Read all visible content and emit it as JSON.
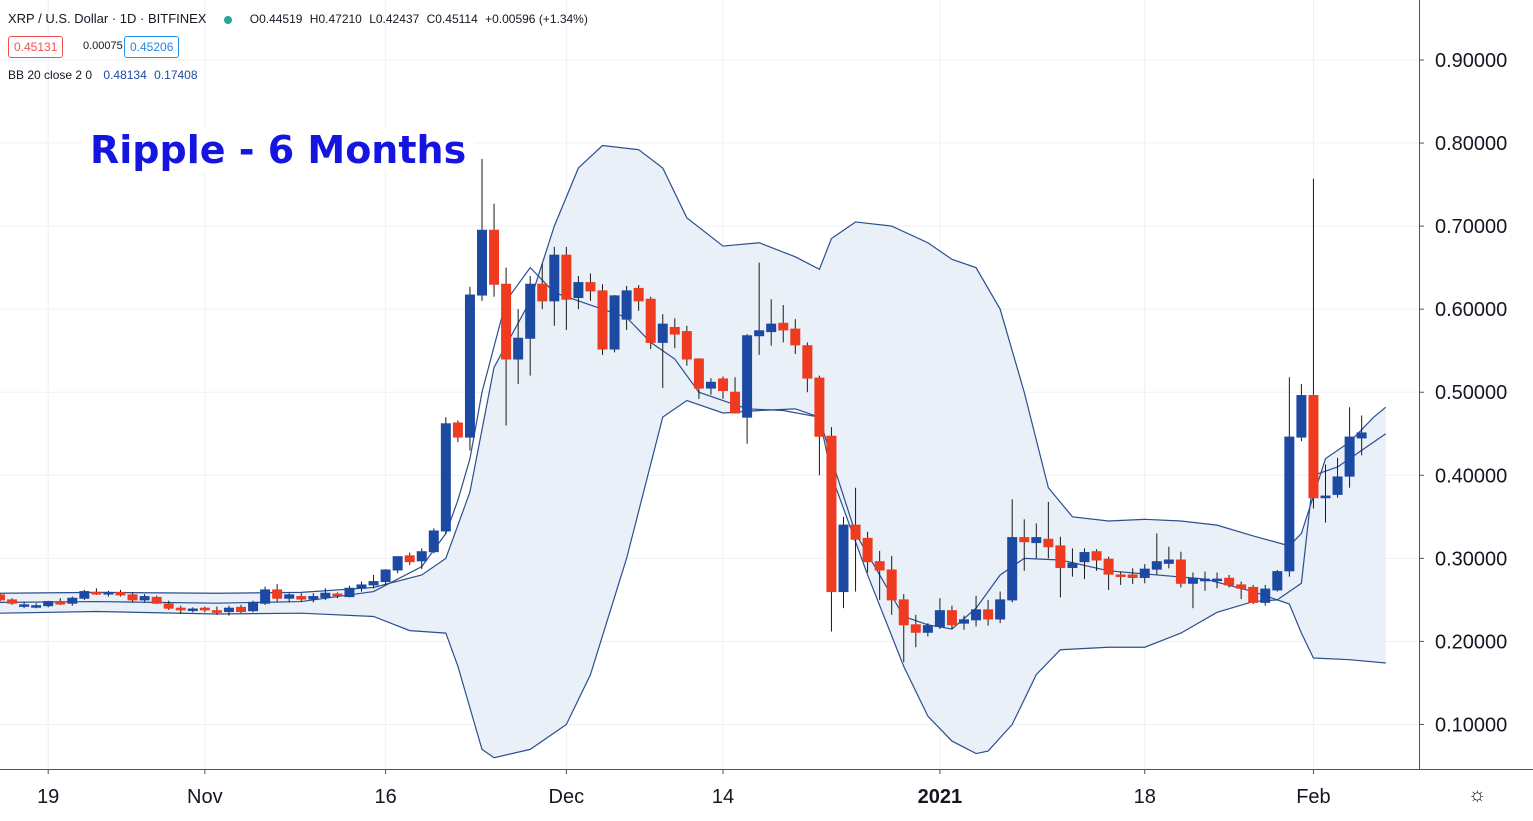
{
  "header": {
    "symbol": "XRP / U.S. Dollar",
    "interval": "1D",
    "exchange": "BITFINEX",
    "open": "O0.44519",
    "high": "H0.47210",
    "low": "L0.42437",
    "close": "C0.45114",
    "change": "+0.00596 (+1.34%)",
    "status_color": "#26a69a"
  },
  "price_boxes": {
    "bid": "0.45131",
    "spread": "0.00075",
    "ask": "0.45206"
  },
  "indicator": {
    "label": "BB 20 close 2 0",
    "upper": "0.48134",
    "lower": "0.17408"
  },
  "title": "Ripple - 6 Months",
  "colors": {
    "up": "#1c4aa3",
    "down": "#ef3b1f",
    "band": "#2a4f8f",
    "band_fill": "#e9f0f8",
    "grid": "#eef0f4"
  },
  "chart_data": {
    "type": "candlestick",
    "title": "Ripple - 6 Months",
    "ylim": [
      0.05,
      0.965
    ],
    "y_ticks": [
      "0.90000",
      "0.80000",
      "0.70000",
      "0.60000",
      "0.50000",
      "0.40000",
      "0.30000",
      "0.20000",
      "0.10000"
    ],
    "y_tick_values": [
      0.9,
      0.8,
      0.7,
      0.6,
      0.5,
      0.4,
      0.3,
      0.2,
      0.1
    ],
    "x_ticks": [
      {
        "label": "19",
        "index": 4
      },
      {
        "label": "Nov",
        "index": 17
      },
      {
        "label": "16",
        "index": 32
      },
      {
        "label": "Dec",
        "index": 47
      },
      {
        "label": "14",
        "index": 60
      },
      {
        "label": "2021",
        "index": 78,
        "bold": true
      },
      {
        "label": "18",
        "index": 95
      },
      {
        "label": "Feb",
        "index": 109
      }
    ],
    "grid": true,
    "candles": [
      [
        0.256,
        0.258,
        0.248,
        0.25
      ],
      [
        0.25,
        0.252,
        0.244,
        0.246
      ],
      [
        0.243,
        0.247,
        0.24,
        0.244
      ],
      [
        0.242,
        0.246,
        0.24,
        0.243
      ],
      [
        0.243,
        0.249,
        0.241,
        0.248
      ],
      [
        0.248,
        0.252,
        0.244,
        0.245
      ],
      [
        0.246,
        0.254,
        0.243,
        0.252
      ],
      [
        0.252,
        0.262,
        0.25,
        0.26
      ],
      [
        0.259,
        0.264,
        0.256,
        0.257
      ],
      [
        0.257,
        0.261,
        0.254,
        0.259
      ],
      [
        0.259,
        0.262,
        0.254,
        0.256
      ],
      [
        0.256,
        0.259,
        0.247,
        0.25
      ],
      [
        0.25,
        0.257,
        0.247,
        0.254
      ],
      [
        0.253,
        0.255,
        0.245,
        0.246
      ],
      [
        0.245,
        0.249,
        0.238,
        0.24
      ],
      [
        0.24,
        0.243,
        0.233,
        0.238
      ],
      [
        0.238,
        0.241,
        0.235,
        0.239
      ],
      [
        0.24,
        0.242,
        0.235,
        0.238
      ],
      [
        0.237,
        0.242,
        0.232,
        0.235
      ],
      [
        0.236,
        0.243,
        0.231,
        0.24
      ],
      [
        0.241,
        0.244,
        0.234,
        0.236
      ],
      [
        0.237,
        0.249,
        0.235,
        0.247
      ],
      [
        0.246,
        0.266,
        0.244,
        0.262
      ],
      [
        0.262,
        0.269,
        0.248,
        0.252
      ],
      [
        0.252,
        0.258,
        0.247,
        0.256
      ],
      [
        0.254,
        0.258,
        0.248,
        0.251
      ],
      [
        0.251,
        0.258,
        0.247,
        0.254
      ],
      [
        0.253,
        0.264,
        0.25,
        0.258
      ],
      [
        0.257,
        0.259,
        0.252,
        0.255
      ],
      [
        0.254,
        0.267,
        0.253,
        0.264
      ],
      [
        0.264,
        0.272,
        0.26,
        0.268
      ],
      [
        0.268,
        0.28,
        0.264,
        0.272
      ],
      [
        0.272,
        0.287,
        0.268,
        0.286
      ],
      [
        0.286,
        0.302,
        0.282,
        0.302
      ],
      [
        0.303,
        0.307,
        0.292,
        0.296
      ],
      [
        0.297,
        0.312,
        0.287,
        0.308
      ],
      [
        0.308,
        0.336,
        0.306,
        0.333
      ],
      [
        0.333,
        0.47,
        0.329,
        0.462
      ],
      [
        0.463,
        0.466,
        0.44,
        0.446
      ],
      [
        0.446,
        0.627,
        0.43,
        0.617
      ],
      [
        0.617,
        0.781,
        0.61,
        0.695
      ],
      [
        0.695,
        0.727,
        0.615,
        0.63
      ],
      [
        0.63,
        0.65,
        0.46,
        0.54
      ],
      [
        0.54,
        0.6,
        0.51,
        0.565
      ],
      [
        0.565,
        0.64,
        0.52,
        0.63
      ],
      [
        0.63,
        0.655,
        0.6,
        0.61
      ],
      [
        0.61,
        0.675,
        0.58,
        0.665
      ],
      [
        0.665,
        0.675,
        0.575,
        0.612
      ],
      [
        0.614,
        0.64,
        0.6,
        0.632
      ],
      [
        0.632,
        0.643,
        0.61,
        0.622
      ],
      [
        0.622,
        0.63,
        0.545,
        0.552
      ],
      [
        0.552,
        0.617,
        0.548,
        0.616
      ],
      [
        0.588,
        0.628,
        0.575,
        0.622
      ],
      [
        0.625,
        0.629,
        0.598,
        0.61
      ],
      [
        0.612,
        0.615,
        0.552,
        0.56
      ],
      [
        0.56,
        0.594,
        0.505,
        0.582
      ],
      [
        0.578,
        0.589,
        0.553,
        0.57
      ],
      [
        0.573,
        0.58,
        0.532,
        0.54
      ],
      [
        0.54,
        0.541,
        0.492,
        0.505
      ],
      [
        0.505,
        0.517,
        0.497,
        0.512
      ],
      [
        0.516,
        0.519,
        0.492,
        0.502
      ],
      [
        0.5,
        0.518,
        0.476,
        0.475
      ],
      [
        0.47,
        0.57,
        0.438,
        0.568
      ],
      [
        0.568,
        0.656,
        0.545,
        0.574
      ],
      [
        0.573,
        0.612,
        0.556,
        0.582
      ],
      [
        0.583,
        0.605,
        0.56,
        0.575
      ],
      [
        0.576,
        0.588,
        0.546,
        0.557
      ],
      [
        0.556,
        0.56,
        0.5,
        0.517
      ],
      [
        0.517,
        0.52,
        0.4,
        0.447
      ],
      [
        0.447,
        0.458,
        0.212,
        0.26
      ],
      [
        0.26,
        0.35,
        0.24,
        0.34
      ],
      [
        0.34,
        0.385,
        0.26,
        0.323
      ],
      [
        0.324,
        0.332,
        0.283,
        0.296
      ],
      [
        0.296,
        0.309,
        0.25,
        0.286
      ],
      [
        0.286,
        0.303,
        0.232,
        0.25
      ],
      [
        0.25,
        0.257,
        0.175,
        0.22
      ],
      [
        0.22,
        0.232,
        0.193,
        0.211
      ],
      [
        0.211,
        0.222,
        0.206,
        0.219
      ],
      [
        0.218,
        0.252,
        0.215,
        0.237
      ],
      [
        0.237,
        0.243,
        0.215,
        0.22
      ],
      [
        0.222,
        0.231,
        0.214,
        0.226
      ],
      [
        0.226,
        0.255,
        0.218,
        0.238
      ],
      [
        0.238,
        0.25,
        0.219,
        0.227
      ],
      [
        0.227,
        0.26,
        0.222,
        0.25
      ],
      [
        0.25,
        0.371,
        0.247,
        0.325
      ],
      [
        0.325,
        0.347,
        0.285,
        0.32
      ],
      [
        0.319,
        0.342,
        0.3,
        0.325
      ],
      [
        0.323,
        0.368,
        0.3,
        0.314
      ],
      [
        0.315,
        0.326,
        0.253,
        0.289
      ],
      [
        0.289,
        0.312,
        0.278,
        0.294
      ],
      [
        0.296,
        0.312,
        0.275,
        0.307
      ],
      [
        0.308,
        0.311,
        0.285,
        0.298
      ],
      [
        0.299,
        0.302,
        0.262,
        0.281
      ],
      [
        0.28,
        0.284,
        0.268,
        0.279
      ],
      [
        0.28,
        0.288,
        0.269,
        0.277
      ],
      [
        0.277,
        0.293,
        0.27,
        0.287
      ],
      [
        0.287,
        0.33,
        0.28,
        0.296
      ],
      [
        0.294,
        0.314,
        0.288,
        0.298
      ],
      [
        0.298,
        0.308,
        0.265,
        0.27
      ],
      [
        0.27,
        0.283,
        0.24,
        0.276
      ],
      [
        0.273,
        0.284,
        0.261,
        0.275
      ],
      [
        0.274,
        0.283,
        0.264,
        0.275
      ],
      [
        0.276,
        0.28,
        0.265,
        0.268
      ],
      [
        0.268,
        0.272,
        0.251,
        0.264
      ],
      [
        0.265,
        0.268,
        0.245,
        0.247
      ],
      [
        0.247,
        0.268,
        0.243,
        0.263
      ],
      [
        0.262,
        0.286,
        0.26,
        0.284
      ],
      [
        0.285,
        0.518,
        0.278,
        0.446
      ],
      [
        0.446,
        0.51,
        0.441,
        0.496
      ],
      [
        0.496,
        0.757,
        0.36,
        0.373
      ],
      [
        0.373,
        0.413,
        0.343,
        0.375
      ],
      [
        0.377,
        0.421,
        0.373,
        0.398
      ],
      [
        0.399,
        0.482,
        0.385,
        0.446
      ],
      [
        0.445,
        0.472,
        0.424,
        0.451
      ]
    ],
    "bollinger_upper": [
      [
        0,
        0.258
      ],
      [
        8,
        0.259
      ],
      [
        18,
        0.258
      ],
      [
        25,
        0.259
      ],
      [
        31,
        0.265
      ],
      [
        35,
        0.28
      ],
      [
        37,
        0.3
      ],
      [
        39,
        0.38
      ],
      [
        41,
        0.53
      ],
      [
        44,
        0.61
      ],
      [
        46,
        0.7
      ],
      [
        48,
        0.77
      ],
      [
        50,
        0.797
      ],
      [
        53,
        0.792
      ],
      [
        55,
        0.77
      ],
      [
        57,
        0.71
      ],
      [
        60,
        0.676
      ],
      [
        63,
        0.68
      ],
      [
        66,
        0.663
      ],
      [
        68,
        0.648
      ],
      [
        69,
        0.685
      ],
      [
        71,
        0.705
      ],
      [
        74,
        0.7
      ],
      [
        77,
        0.68
      ],
      [
        79,
        0.66
      ],
      [
        81,
        0.65
      ],
      [
        83,
        0.6
      ],
      [
        85,
        0.5
      ],
      [
        87,
        0.385
      ],
      [
        89,
        0.35
      ],
      [
        92,
        0.345
      ],
      [
        95,
        0.347
      ],
      [
        98,
        0.345
      ],
      [
        101,
        0.34
      ],
      [
        104,
        0.327
      ],
      [
        107,
        0.315
      ],
      [
        108,
        0.33
      ],
      [
        110,
        0.42
      ],
      [
        112,
        0.44
      ],
      [
        114,
        0.47
      ],
      [
        115,
        0.482
      ]
    ],
    "bollinger_middle": [
      [
        0,
        0.247
      ],
      [
        8,
        0.248
      ],
      [
        18,
        0.246
      ],
      [
        25,
        0.248
      ],
      [
        31,
        0.26
      ],
      [
        35,
        0.29
      ],
      [
        37,
        0.33
      ],
      [
        38,
        0.37
      ],
      [
        39,
        0.42
      ],
      [
        40,
        0.5
      ],
      [
        42,
        0.61
      ],
      [
        44,
        0.65
      ],
      [
        46,
        0.62
      ],
      [
        50,
        0.6
      ],
      [
        52,
        0.59
      ],
      [
        54,
        0.56
      ],
      [
        56,
        0.54
      ],
      [
        58,
        0.5
      ],
      [
        60,
        0.49
      ],
      [
        62,
        0.48
      ],
      [
        65,
        0.478
      ],
      [
        68,
        0.47
      ],
      [
        69,
        0.42
      ],
      [
        71,
        0.33
      ],
      [
        73,
        0.28
      ],
      [
        75,
        0.23
      ],
      [
        77,
        0.22
      ],
      [
        79,
        0.215
      ],
      [
        81,
        0.24
      ],
      [
        83,
        0.28
      ],
      [
        85,
        0.3
      ],
      [
        88,
        0.298
      ],
      [
        92,
        0.285
      ],
      [
        96,
        0.28
      ],
      [
        100,
        0.275
      ],
      [
        104,
        0.26
      ],
      [
        106,
        0.25
      ],
      [
        108,
        0.27
      ],
      [
        109,
        0.4
      ],
      [
        111,
        0.41
      ],
      [
        113,
        0.43
      ],
      [
        115,
        0.45
      ]
    ],
    "bollinger_lower": [
      [
        0,
        0.234
      ],
      [
        8,
        0.236
      ],
      [
        18,
        0.233
      ],
      [
        25,
        0.234
      ],
      [
        31,
        0.23
      ],
      [
        34,
        0.213
      ],
      [
        37,
        0.21
      ],
      [
        38,
        0.17
      ],
      [
        39,
        0.12
      ],
      [
        40,
        0.07
      ],
      [
        41,
        0.06
      ],
      [
        44,
        0.07
      ],
      [
        47,
        0.1
      ],
      [
        49,
        0.16
      ],
      [
        52,
        0.3
      ],
      [
        55,
        0.47
      ],
      [
        57,
        0.49
      ],
      [
        60,
        0.475
      ],
      [
        63,
        0.478
      ],
      [
        66,
        0.48
      ],
      [
        68,
        0.47
      ],
      [
        69,
        0.4
      ],
      [
        72,
        0.28
      ],
      [
        75,
        0.17
      ],
      [
        77,
        0.11
      ],
      [
        79,
        0.08
      ],
      [
        81,
        0.065
      ],
      [
        82,
        0.068
      ],
      [
        84,
        0.1
      ],
      [
        86,
        0.16
      ],
      [
        88,
        0.19
      ],
      [
        92,
        0.193
      ],
      [
        95,
        0.193
      ],
      [
        98,
        0.21
      ],
      [
        101,
        0.235
      ],
      [
        104,
        0.248
      ],
      [
        106,
        0.25
      ],
      [
        107,
        0.245
      ],
      [
        108,
        0.21
      ],
      [
        109,
        0.18
      ],
      [
        112,
        0.178
      ],
      [
        115,
        0.174
      ]
    ]
  }
}
